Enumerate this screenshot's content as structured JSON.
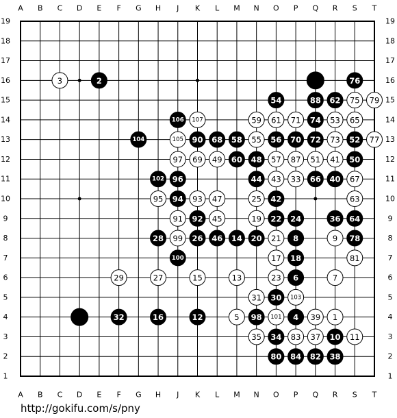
{
  "board": {
    "columns": [
      "A",
      "B",
      "C",
      "D",
      "E",
      "F",
      "G",
      "H",
      "J",
      "K",
      "L",
      "M",
      "N",
      "O",
      "P",
      "Q",
      "R",
      "S",
      "T"
    ],
    "rows": [
      19,
      18,
      17,
      16,
      15,
      14,
      13,
      12,
      11,
      10,
      9,
      8,
      7,
      6,
      5,
      4,
      3,
      2,
      1
    ],
    "stones": [
      {
        "point": "C16",
        "color": "white",
        "label": 3
      },
      {
        "point": "E16",
        "color": "black",
        "label": 2
      },
      {
        "point": "Q16",
        "color": "black"
      },
      {
        "point": "S16",
        "color": "black",
        "label": 76
      },
      {
        "point": "O15",
        "color": "black",
        "label": 54
      },
      {
        "point": "Q15",
        "color": "black",
        "label": 88
      },
      {
        "point": "R15",
        "color": "black",
        "label": 62
      },
      {
        "point": "S15",
        "color": "white",
        "label": 75
      },
      {
        "point": "T15",
        "color": "white",
        "label": 79
      },
      {
        "point": "J14",
        "color": "black",
        "label": 106
      },
      {
        "point": "K14",
        "color": "white",
        "label": 107
      },
      {
        "point": "N14",
        "color": "white",
        "label": 59
      },
      {
        "point": "O14",
        "color": "white",
        "label": 61
      },
      {
        "point": "P14",
        "color": "white",
        "label": 71
      },
      {
        "point": "Q14",
        "color": "black",
        "label": 74
      },
      {
        "point": "R14",
        "color": "white",
        "label": 53
      },
      {
        "point": "S14",
        "color": "white",
        "label": 65
      },
      {
        "point": "G13",
        "color": "black",
        "label": 104
      },
      {
        "point": "J13",
        "color": "white",
        "label": 105
      },
      {
        "point": "K13",
        "color": "black",
        "label": 90
      },
      {
        "point": "L13",
        "color": "black",
        "label": 68
      },
      {
        "point": "M13",
        "color": "black",
        "label": 58
      },
      {
        "point": "N13",
        "color": "white",
        "label": 55
      },
      {
        "point": "O13",
        "color": "black",
        "label": 56
      },
      {
        "point": "P13",
        "color": "black",
        "label": 70
      },
      {
        "point": "Q13",
        "color": "black",
        "label": 72
      },
      {
        "point": "R13",
        "color": "white",
        "label": 73
      },
      {
        "point": "S13",
        "color": "black",
        "label": 52
      },
      {
        "point": "T13",
        "color": "white",
        "label": 77
      },
      {
        "point": "J12",
        "color": "white",
        "label": 97
      },
      {
        "point": "K12",
        "color": "white",
        "label": 69
      },
      {
        "point": "L12",
        "color": "white",
        "label": 49
      },
      {
        "point": "M12",
        "color": "black",
        "label": 60
      },
      {
        "point": "N12",
        "color": "black",
        "label": 48
      },
      {
        "point": "O12",
        "color": "white",
        "label": 57
      },
      {
        "point": "P12",
        "color": "white",
        "label": 87
      },
      {
        "point": "Q12",
        "color": "white",
        "label": 51
      },
      {
        "point": "R12",
        "color": "white",
        "label": 41
      },
      {
        "point": "S12",
        "color": "black",
        "label": 50
      },
      {
        "point": "H11",
        "color": "black",
        "label": 102
      },
      {
        "point": "J11",
        "color": "black",
        "label": 96
      },
      {
        "point": "N11",
        "color": "black",
        "label": 44
      },
      {
        "point": "O11",
        "color": "white",
        "label": 43
      },
      {
        "point": "P11",
        "color": "white",
        "label": 33
      },
      {
        "point": "Q11",
        "color": "black",
        "label": 66
      },
      {
        "point": "R11",
        "color": "black",
        "label": 40
      },
      {
        "point": "S11",
        "color": "white",
        "label": 67
      },
      {
        "point": "H10",
        "color": "white",
        "label": 95
      },
      {
        "point": "J10",
        "color": "black",
        "label": 94
      },
      {
        "point": "K10",
        "color": "white",
        "label": 93
      },
      {
        "point": "L10",
        "color": "white",
        "label": 47
      },
      {
        "point": "N10",
        "color": "white",
        "label": 25
      },
      {
        "point": "O10",
        "color": "black",
        "label": 42
      },
      {
        "point": "S10",
        "color": "white",
        "label": 63
      },
      {
        "point": "J9",
        "color": "white",
        "label": 91
      },
      {
        "point": "K9",
        "color": "black",
        "label": 92
      },
      {
        "point": "L9",
        "color": "white",
        "label": 45
      },
      {
        "point": "N9",
        "color": "white",
        "label": 19
      },
      {
        "point": "O9",
        "color": "black",
        "label": 22
      },
      {
        "point": "P9",
        "color": "black",
        "label": 24
      },
      {
        "point": "R9",
        "color": "black",
        "label": 36
      },
      {
        "point": "S9",
        "color": "black",
        "label": 64
      },
      {
        "point": "H8",
        "color": "black",
        "label": 28
      },
      {
        "point": "J8",
        "color": "white",
        "label": 99
      },
      {
        "point": "K8",
        "color": "black",
        "label": 26
      },
      {
        "point": "L8",
        "color": "black",
        "label": 46
      },
      {
        "point": "M8",
        "color": "black",
        "label": 14
      },
      {
        "point": "N8",
        "color": "black",
        "label": 20
      },
      {
        "point": "O8",
        "color": "white",
        "label": 21
      },
      {
        "point": "P8",
        "color": "black",
        "label": 8
      },
      {
        "point": "R8",
        "color": "white",
        "label": 9
      },
      {
        "point": "S8",
        "color": "black",
        "label": 78
      },
      {
        "point": "J7",
        "color": "black",
        "label": 100
      },
      {
        "point": "O7",
        "color": "white",
        "label": 17
      },
      {
        "point": "P7",
        "color": "black",
        "label": 18
      },
      {
        "point": "S7",
        "color": "white",
        "label": 81
      },
      {
        "point": "F6",
        "color": "white",
        "label": 29
      },
      {
        "point": "H6",
        "color": "white",
        "label": 27
      },
      {
        "point": "K6",
        "color": "white",
        "label": 15
      },
      {
        "point": "M6",
        "color": "white",
        "label": 13
      },
      {
        "point": "O6",
        "color": "white",
        "label": 23
      },
      {
        "point": "P6",
        "color": "black",
        "label": 6
      },
      {
        "point": "R6",
        "color": "white",
        "label": 7
      },
      {
        "point": "N5",
        "color": "white",
        "label": 31
      },
      {
        "point": "O5",
        "color": "black",
        "label": 30
      },
      {
        "point": "P5",
        "color": "white",
        "label": 103
      },
      {
        "point": "D4",
        "color": "black"
      },
      {
        "point": "F4",
        "color": "black",
        "label": 32
      },
      {
        "point": "H4",
        "color": "black",
        "label": 16
      },
      {
        "point": "K4",
        "color": "black",
        "label": 12
      },
      {
        "point": "M4",
        "color": "white",
        "label": 5
      },
      {
        "point": "N4",
        "color": "black",
        "label": 98
      },
      {
        "point": "O4",
        "color": "white",
        "label": 101
      },
      {
        "point": "P4",
        "color": "black",
        "label": 4
      },
      {
        "point": "Q4",
        "color": "white",
        "label": 39
      },
      {
        "point": "R4",
        "color": "white",
        "label": 1
      },
      {
        "point": "N3",
        "color": "white",
        "label": 35
      },
      {
        "point": "O3",
        "color": "black",
        "label": 34
      },
      {
        "point": "P3",
        "color": "white",
        "label": 83
      },
      {
        "point": "Q3",
        "color": "white",
        "label": 37
      },
      {
        "point": "R3",
        "color": "black",
        "label": 10
      },
      {
        "point": "S3",
        "color": "white",
        "label": 11
      },
      {
        "point": "O2",
        "color": "black",
        "label": 80
      },
      {
        "point": "P2",
        "color": "black",
        "label": 84
      },
      {
        "point": "Q2",
        "color": "black",
        "label": 82
      },
      {
        "point": "R2",
        "color": "black",
        "label": 38
      }
    ]
  },
  "footer": {
    "url": "http://gokifu.com/s/pny"
  }
}
